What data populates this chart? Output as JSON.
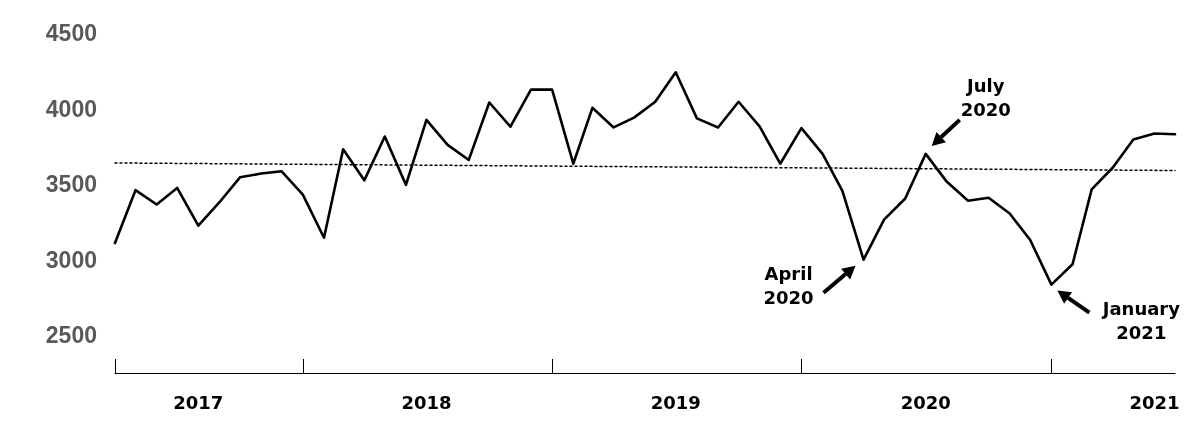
{
  "chart_data": {
    "type": "line",
    "x": [
      "2017-04",
      "2017-05",
      "2017-06",
      "2017-07",
      "2017-08",
      "2017-09",
      "2017-10",
      "2017-11",
      "2017-12",
      "2018-01",
      "2018-02",
      "2018-03",
      "2018-04",
      "2018-05",
      "2018-06",
      "2018-07",
      "2018-08",
      "2018-09",
      "2018-10",
      "2018-11",
      "2018-12",
      "2019-01",
      "2019-02",
      "2019-03",
      "2019-04",
      "2019-05",
      "2019-06",
      "2019-07",
      "2019-08",
      "2019-09",
      "2019-10",
      "2019-11",
      "2019-12",
      "2020-01",
      "2020-02",
      "2020-03",
      "2020-04",
      "2020-05",
      "2020-06",
      "2020-07",
      "2020-08",
      "2020-09",
      "2020-10",
      "2020-11",
      "2020-12",
      "2021-01",
      "2021-02",
      "2021-03",
      "2021-04",
      "2021-05",
      "2021-06",
      "2021-07"
    ],
    "series": [
      {
        "color": "#000000",
        "values": [
          3110,
          3460,
          3365,
          3475,
          3225,
          3380,
          3545,
          3570,
          3585,
          3430,
          3145,
          3730,
          3525,
          3815,
          3495,
          3925,
          3760,
          3660,
          4040,
          3880,
          4125,
          4125,
          3635,
          4005,
          3875,
          3940,
          4045,
          4240,
          3935,
          3875,
          4045,
          3880,
          3635,
          3870,
          3700,
          3455,
          3000,
          3265,
          3405,
          3700,
          3515,
          3390,
          3410,
          3305,
          3130,
          2835,
          2970,
          3465,
          3610,
          3795,
          3835,
          3830
        ]
      },
      {
        "type": "line",
        "color": "#000000",
        "line_style": "dotted",
        "x": [
          "2017-04",
          "2021-07"
        ],
        "values": [
          3640,
          3590
        ]
      }
    ],
    "xlim": [
      "2017-04",
      "2021-07"
    ],
    "xticks": [
      {
        "value": "2017-04",
        "label": null
      },
      {
        "value": "2017-08",
        "label": "2017"
      },
      {
        "value": "2018-01",
        "label": null
      },
      {
        "value": "2018-07",
        "label": "2018"
      },
      {
        "value": "2019-01",
        "label": null
      },
      {
        "value": "2019-07",
        "label": "2019"
      },
      {
        "value": "2020-01",
        "label": null
      },
      {
        "value": "2020-07",
        "label": "2020"
      },
      {
        "value": "2021-01",
        "label": null
      },
      {
        "value": "2021-06",
        "label": "2021"
      }
    ],
    "ylim": [
      2250,
      4500
    ],
    "yticks": [
      2500,
      3000,
      3500,
      4000,
      4500
    ],
    "grid": false,
    "marker": "none",
    "line_style": "solid",
    "annotations": [
      {
        "text": "April\n2020",
        "x": "2020-04",
        "y": 3000
      },
      {
        "text": "July\n2020",
        "x": "2020-07",
        "y": 3700
      },
      {
        "text": "January\n2021",
        "x": "2021-01",
        "y": 2835
      }
    ]
  }
}
